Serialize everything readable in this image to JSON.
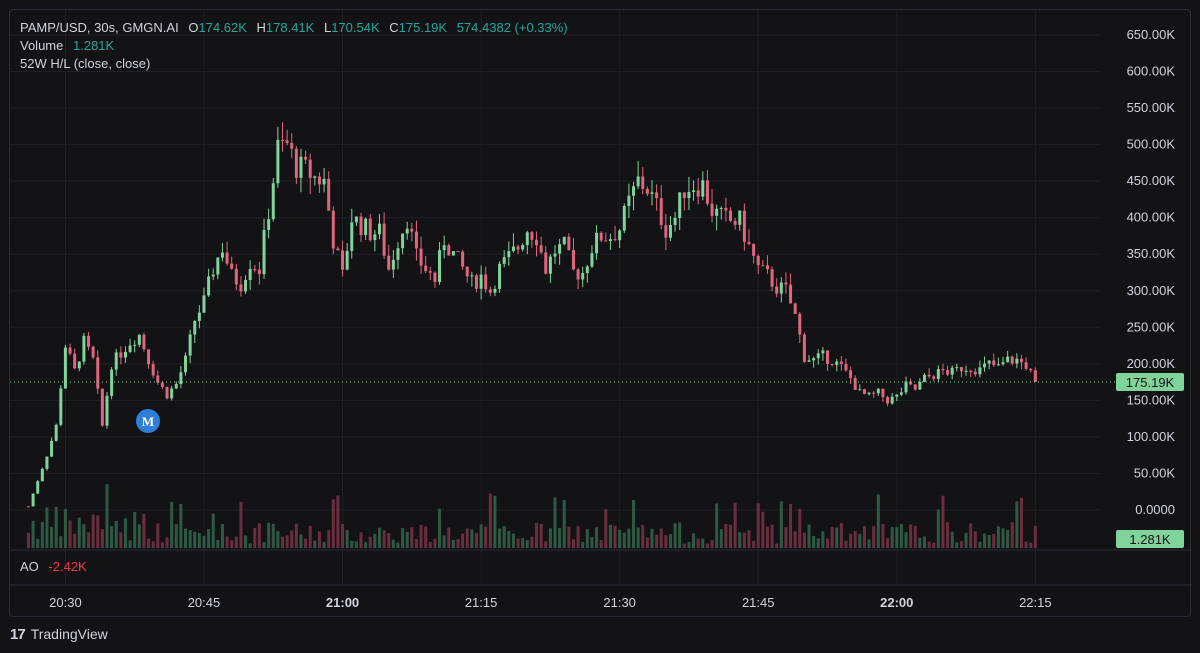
{
  "header": {
    "symbol": "PAMP/USD, 30s, GMGN.AI",
    "o_label": "O",
    "o_value": "174.62K",
    "h_label": "H",
    "h_value": "178.41K",
    "l_label": "L",
    "l_value": "170.54K",
    "c_label": "C",
    "c_value": "175.19K",
    "change": "574.4382 (+0.33%)",
    "volume_label": "Volume",
    "volume_value": "1.281K",
    "indicator_52w": "52W H/L (close, close)"
  },
  "ao": {
    "label": "AO",
    "value": "-2.42K"
  },
  "marker": {
    "letter": "M"
  },
  "footer": {
    "brand": "TradingView"
  },
  "colors": {
    "up": "#7fd39b",
    "down": "#e0657e",
    "bg": "#131316",
    "grid": "#1f2128",
    "text": "#d1d4dc",
    "marker": "#2f7fd8"
  },
  "chart_data": {
    "type": "candlestick",
    "title": "PAMP/USD, 30s, GMGN.AI",
    "price_axis": {
      "ticks": [
        "650.00K",
        "600.00K",
        "550.00K",
        "500.00K",
        "450.00K",
        "400.00K",
        "350.00K",
        "300.00K",
        "250.00K",
        "200.00K",
        "150.00K",
        "100.00K",
        "50.00K",
        "0.0000"
      ],
      "tick_values": [
        650000,
        600000,
        550000,
        500000,
        450000,
        400000,
        350000,
        300000,
        250000,
        200000,
        150000,
        100000,
        50000,
        0
      ],
      "range": [
        0,
        650000
      ]
    },
    "time_axis": {
      "ticks": [
        "20:30",
        "20:45",
        "21:00",
        "21:15",
        "21:30",
        "21:45",
        "22:00",
        "22:15"
      ],
      "bold": [
        "21:00",
        "22:00"
      ],
      "range": [
        "20:24",
        "22:22"
      ]
    },
    "last_price": {
      "value": 175190,
      "label": "175.19K"
    },
    "last_volume": {
      "value": 1281,
      "label": "1.281K"
    },
    "price_path": [
      [
        "20:26",
        5000
      ],
      [
        "20:27",
        40000
      ],
      [
        "20:28",
        75000
      ],
      [
        "20:29",
        115000
      ],
      [
        "20:30",
        225000
      ],
      [
        "20:31",
        190000
      ],
      [
        "20:32",
        230000
      ],
      [
        "20:33",
        205000
      ],
      [
        "20:34",
        115000
      ],
      [
        "20:35",
        200000
      ],
      [
        "20:36",
        215000
      ],
      [
        "20:37",
        230000
      ],
      [
        "20:38",
        240000
      ],
      [
        "20:39",
        205000
      ],
      [
        "20:40",
        175000
      ],
      [
        "20:41",
        158000
      ],
      [
        "20:42",
        172000
      ],
      [
        "20:43",
        205000
      ],
      [
        "20:44",
        260000
      ],
      [
        "20:45",
        285000
      ],
      [
        "20:46",
        330000
      ],
      [
        "20:47",
        360000
      ],
      [
        "20:48",
        320000
      ],
      [
        "20:49",
        310000
      ],
      [
        "20:50",
        340000
      ],
      [
        "20:51",
        330000
      ],
      [
        "20:52",
        410000
      ],
      [
        "20:53",
        495000
      ],
      [
        "20:54",
        500000
      ],
      [
        "20:55",
        470000
      ],
      [
        "20:56",
        465000
      ],
      [
        "20:57",
        455000
      ],
      [
        "20:58",
        450000
      ],
      [
        "20:59",
        370000
      ],
      [
        "21:00",
        320000
      ],
      [
        "21:01",
        400000
      ],
      [
        "21:02",
        390000
      ],
      [
        "21:03",
        380000
      ],
      [
        "21:04",
        380000
      ],
      [
        "21:05",
        330000
      ],
      [
        "21:06",
        370000
      ],
      [
        "21:07",
        400000
      ],
      [
        "21:08",
        345000
      ],
      [
        "21:09",
        330000
      ],
      [
        "21:10",
        315000
      ],
      [
        "21:11",
        370000
      ],
      [
        "21:12",
        350000
      ],
      [
        "21:13",
        330000
      ],
      [
        "21:14",
        310000
      ],
      [
        "21:15",
        320000
      ],
      [
        "21:16",
        300000
      ],
      [
        "21:17",
        330000
      ],
      [
        "21:18",
        345000
      ],
      [
        "21:19",
        360000
      ],
      [
        "21:20",
        385000
      ],
      [
        "21:21",
        375000
      ],
      [
        "21:22",
        330000
      ],
      [
        "21:23",
        355000
      ],
      [
        "21:24",
        360000
      ],
      [
        "21:25",
        325000
      ],
      [
        "21:26",
        325000
      ],
      [
        "21:27",
        360000
      ],
      [
        "21:28",
        375000
      ],
      [
        "21:29",
        375000
      ],
      [
        "21:30",
        385000
      ],
      [
        "21:31",
        420000
      ],
      [
        "21:32",
        450000
      ],
      [
        "21:33",
        440000
      ],
      [
        "21:34",
        415000
      ],
      [
        "21:35",
        385000
      ],
      [
        "21:36",
        400000
      ],
      [
        "21:37",
        440000
      ],
      [
        "21:38",
        445000
      ],
      [
        "21:39",
        445000
      ],
      [
        "21:40",
        410000
      ],
      [
        "21:41",
        400000
      ],
      [
        "21:42",
        395000
      ],
      [
        "21:43",
        395000
      ],
      [
        "21:44",
        360000
      ],
      [
        "21:45",
        330000
      ],
      [
        "21:46",
        320000
      ],
      [
        "21:47",
        305000
      ],
      [
        "21:48",
        300000
      ],
      [
        "21:49",
        265000
      ],
      [
        "21:50",
        210000
      ],
      [
        "21:51",
        205000
      ],
      [
        "21:52",
        210000
      ],
      [
        "21:53",
        205000
      ],
      [
        "21:54",
        195000
      ],
      [
        "21:55",
        180000
      ],
      [
        "21:56",
        160000
      ],
      [
        "21:57",
        155000
      ],
      [
        "21:58",
        160000
      ],
      [
        "21:59",
        150000
      ],
      [
        "22:00",
        155000
      ],
      [
        "22:01",
        170000
      ],
      [
        "22:02",
        165000
      ],
      [
        "22:03",
        180000
      ],
      [
        "22:04",
        185000
      ],
      [
        "22:05",
        190000
      ],
      [
        "22:06",
        188000
      ],
      [
        "22:07",
        195000
      ],
      [
        "22:08",
        195000
      ],
      [
        "22:09",
        192000
      ],
      [
        "22:10",
        200000
      ],
      [
        "22:11",
        195000
      ],
      [
        "22:12",
        205000
      ],
      [
        "22:13",
        205000
      ],
      [
        "22:14",
        198000
      ],
      [
        "22:15",
        175000
      ]
    ]
  }
}
